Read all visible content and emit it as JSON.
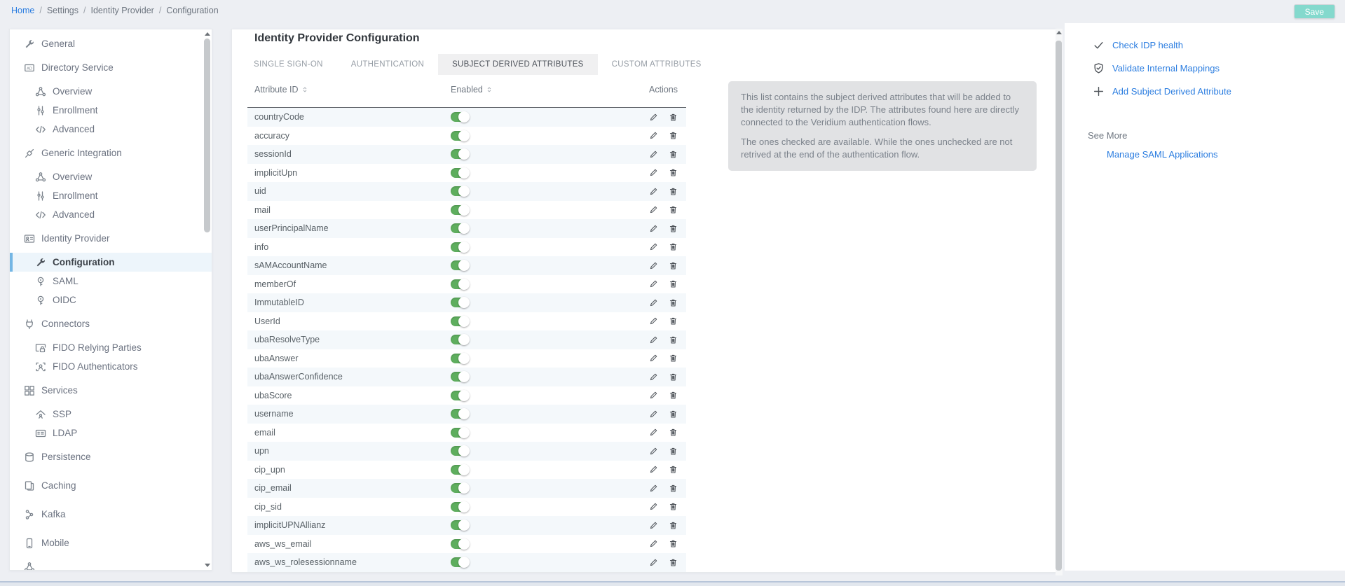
{
  "breadcrumb": {
    "items": [
      "Home",
      "Settings",
      "Identity Provider",
      "Configuration"
    ],
    "separator": "/"
  },
  "header": {
    "save_label": "Save"
  },
  "sidebar": {
    "items": [
      {
        "label": "General",
        "icon": "wrench-icon",
        "level": "group"
      },
      {
        "label": "Directory Service",
        "icon": "ad-icon",
        "level": "group"
      },
      {
        "label": "Overview",
        "icon": "network-icon",
        "level": "child"
      },
      {
        "label": "Enrollment",
        "icon": "sliders-icon",
        "level": "child"
      },
      {
        "label": "Advanced",
        "icon": "code-icon",
        "level": "child"
      },
      {
        "label": "Generic Integration",
        "icon": "integration-icon",
        "level": "group"
      },
      {
        "label": "Overview",
        "icon": "network-icon",
        "level": "child"
      },
      {
        "label": "Enrollment",
        "icon": "sliders-icon",
        "level": "child"
      },
      {
        "label": "Advanced",
        "icon": "code-icon",
        "level": "child"
      },
      {
        "label": "Identity Provider",
        "icon": "id-card-icon",
        "level": "group"
      },
      {
        "label": "Configuration",
        "icon": "wrench-icon",
        "level": "child",
        "active": true
      },
      {
        "label": "SAML",
        "icon": "key-icon",
        "level": "child"
      },
      {
        "label": "OIDC",
        "icon": "key-icon",
        "level": "child"
      },
      {
        "label": "Connectors",
        "icon": "plug-icon",
        "level": "group"
      },
      {
        "label": "FIDO Relying Parties",
        "icon": "browser-lock-icon",
        "level": "child"
      },
      {
        "label": "FIDO Authenticators",
        "icon": "fingerprint-icon",
        "level": "child"
      },
      {
        "label": "Services",
        "icon": "grid-icon",
        "level": "group"
      },
      {
        "label": "SSP",
        "icon": "home-user-icon",
        "level": "child"
      },
      {
        "label": "LDAP",
        "icon": "contact-card-icon",
        "level": "child"
      },
      {
        "label": "Persistence",
        "icon": "database-icon",
        "level": "group"
      },
      {
        "label": "Caching",
        "icon": "cache-icon",
        "level": "group",
        "spaced": true
      },
      {
        "label": "Kafka",
        "icon": "kafka-icon",
        "level": "group",
        "spaced": true
      },
      {
        "label": "Mobile",
        "icon": "mobile-icon",
        "level": "group",
        "spaced": true
      },
      {
        "label": "",
        "icon": "network-icon",
        "level": "group"
      }
    ]
  },
  "main": {
    "title": "Identity Provider Configuration",
    "tabs": [
      {
        "label": "SINGLE SIGN-ON",
        "active": false
      },
      {
        "label": "AUTHENTICATION",
        "active": false
      },
      {
        "label": "SUBJECT DERIVED ATTRIBUTES",
        "active": true
      },
      {
        "label": "CUSTOM ATTRIBUTES",
        "active": false
      }
    ],
    "table": {
      "columns": [
        "Attribute ID",
        "Enabled",
        "Actions"
      ],
      "rows": [
        {
          "id": "countryCode",
          "enabled": true
        },
        {
          "id": "accuracy",
          "enabled": true
        },
        {
          "id": "sessionId",
          "enabled": true
        },
        {
          "id": "implicitUpn",
          "enabled": true
        },
        {
          "id": "uid",
          "enabled": true
        },
        {
          "id": "mail",
          "enabled": true
        },
        {
          "id": "userPrincipalName",
          "enabled": true
        },
        {
          "id": "info",
          "enabled": true
        },
        {
          "id": "sAMAccountName",
          "enabled": true
        },
        {
          "id": "memberOf",
          "enabled": true
        },
        {
          "id": "ImmutableID",
          "enabled": true
        },
        {
          "id": "UserId",
          "enabled": true
        },
        {
          "id": "ubaResolveType",
          "enabled": true
        },
        {
          "id": "ubaAnswer",
          "enabled": true
        },
        {
          "id": "ubaAnswerConfidence",
          "enabled": true
        },
        {
          "id": "ubaScore",
          "enabled": true
        },
        {
          "id": "username",
          "enabled": true
        },
        {
          "id": "email",
          "enabled": true
        },
        {
          "id": "upn",
          "enabled": true
        },
        {
          "id": "cip_upn",
          "enabled": true
        },
        {
          "id": "cip_email",
          "enabled": true
        },
        {
          "id": "cip_sid",
          "enabled": true
        },
        {
          "id": "implicitUPNAllianz",
          "enabled": true
        },
        {
          "id": "aws_ws_email",
          "enabled": true
        },
        {
          "id": "aws_ws_rolesessionname",
          "enabled": true
        }
      ]
    },
    "info_box": {
      "p1": "This list contains the subject derived attributes that will be added to the identity returned by the IDP. The attributes found here are directly connected to the Veridium authentication flows.",
      "p2": "The ones checked are available. While the ones unchecked are not retrived at the end of the authentication flow."
    }
  },
  "right_panel": {
    "actions": [
      {
        "label": "Check IDP health",
        "icon": "check-icon"
      },
      {
        "label": "Validate Internal Mappings",
        "icon": "shield-check-icon"
      },
      {
        "label": "Add Subject Derived Attribute",
        "icon": "plus-icon"
      }
    ],
    "see_more_label": "See More",
    "see_more_links": [
      "Manage SAML Applications"
    ]
  },
  "colors": {
    "link_blue": "#2b7de0",
    "save_teal": "#84d9cd",
    "toggle_green": "#5eae5e",
    "active_item_bar": "#74b6e4",
    "row_stripe": "#f4f8fb"
  }
}
